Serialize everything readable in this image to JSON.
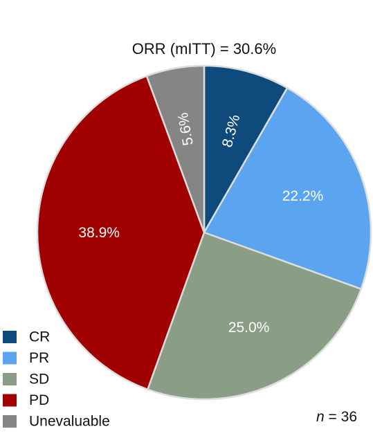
{
  "chart_data": {
    "type": "pie",
    "title": "ORR (mITT) = 30.6%",
    "slices": [
      {
        "label": "CR",
        "value": 8.3,
        "display": "8.3%",
        "color": "#0E4A7C"
      },
      {
        "label": "PR",
        "value": 22.2,
        "display": "22.2%",
        "color": "#5BA4F0"
      },
      {
        "label": "SD",
        "value": 25.0,
        "display": "25.0%",
        "color": "#8A9E86"
      },
      {
        "label": "PD",
        "value": 38.9,
        "display": "38.9%",
        "color": "#A00000"
      },
      {
        "label": "Unevaluable",
        "value": 5.6,
        "display": "5.6%",
        "color": "#858585"
      }
    ],
    "legend_position": "bottom-left",
    "start": "12 o'clock",
    "direction": "clockwise",
    "edge_color": "#DDDDDD",
    "sample_size": {
      "italic_prefix": "n",
      "rest": " = 36"
    }
  }
}
